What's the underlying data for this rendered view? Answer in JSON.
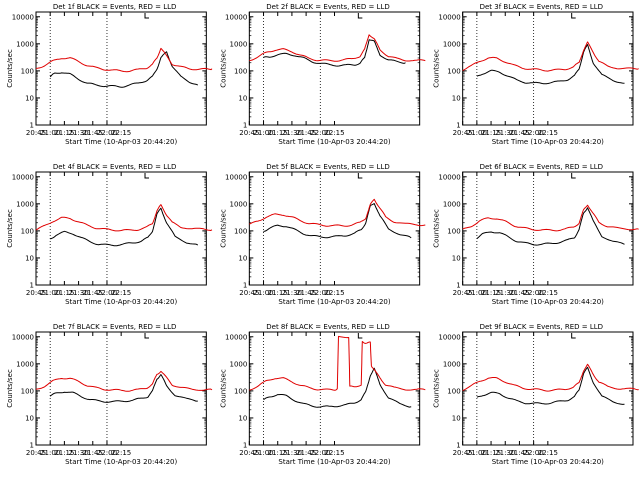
{
  "layout": {
    "rows": 3,
    "cols": 3
  },
  "colors": {
    "events": "#000000",
    "lld": "#e00000",
    "axis": "#000000",
    "background": "#ffffff"
  },
  "ylabel": "Counts/sec",
  "xlabel": "Start Time (10-Apr-03 20:44:20)",
  "xticks": [
    "20:45",
    "21:00",
    "21:15",
    "21:30",
    "21:45",
    "22:00",
    "22:15"
  ],
  "yticks": [
    "1",
    "10",
    "100",
    "1000",
    "10000"
  ],
  "chart_data": [
    {
      "type": "line",
      "title": "Det 1f BLACK = Events, RED = LLD",
      "xlabel": "Start Time (10-Apr-03 20:44:20)",
      "ylabel": "Counts/sec",
      "ylim": [
        1,
        15000
      ],
      "yscale": "log",
      "dotted_lines": [
        21.0,
        22.0
      ],
      "x": [
        21.0,
        21.1,
        21.2,
        21.3,
        21.4,
        21.5,
        21.6,
        21.7,
        21.8,
        21.9,
        22.0,
        22.1,
        22.2,
        22.3,
        22.4,
        22.5,
        22.6,
        22.7,
        22.8,
        22.9,
        23.0,
        23.1,
        23.2,
        23.3,
        23.4,
        23.5,
        23.6
      ],
      "series": [
        {
          "name": "Events",
          "x": [
            21.0,
            21.08,
            21.2,
            21.35,
            21.5,
            21.65,
            21.8,
            21.95,
            22.1,
            22.25,
            22.4,
            22.55,
            22.7,
            22.8,
            22.88,
            22.95,
            23.05,
            23.15,
            23.3,
            23.45,
            23.6
          ],
          "values": [
            60,
            80,
            90,
            75,
            50,
            35,
            30,
            28,
            27,
            26,
            30,
            35,
            45,
            60,
            120,
            300,
            500,
            150,
            60,
            40,
            30
          ]
        },
        {
          "name": "LLD",
          "x": [
            20.75,
            20.9,
            21.05,
            21.2,
            21.35,
            21.5,
            21.65,
            21.8,
            21.95,
            22.1,
            22.25,
            22.4,
            22.55,
            22.7,
            22.8,
            22.88,
            22.95,
            23.05,
            23.15,
            23.3,
            23.45,
            23.6,
            23.75,
            23.85
          ],
          "values": [
            120,
            160,
            230,
            300,
            300,
            220,
            160,
            130,
            115,
            105,
            100,
            100,
            110,
            130,
            170,
            300,
            700,
            350,
            180,
            140,
            120,
            115,
            115,
            120
          ]
        }
      ]
    },
    {
      "type": "line",
      "title": "Det 2f BLACK = Events, RED = LLD",
      "xlabel": "Start Time (10-Apr-03 20:44:20)",
      "ylabel": "Counts/sec",
      "ylim": [
        1,
        15000
      ],
      "yscale": "log",
      "dotted_lines": [
        21.0,
        22.0
      ],
      "series": [
        {
          "name": "Events",
          "x": [
            21.0,
            21.1,
            21.25,
            21.4,
            21.55,
            21.7,
            21.85,
            22.0,
            22.15,
            22.3,
            22.45,
            22.6,
            22.7,
            22.78,
            22.86,
            22.95,
            23.05,
            23.2,
            23.35,
            23.5
          ],
          "values": [
            300,
            330,
            400,
            420,
            380,
            300,
            220,
            190,
            170,
            160,
            160,
            170,
            190,
            300,
            1500,
            1200,
            400,
            250,
            220,
            200
          ]
        },
        {
          "name": "LLD",
          "x": [
            20.75,
            20.9,
            21.05,
            21.2,
            21.35,
            21.5,
            21.65,
            21.8,
            21.95,
            22.1,
            22.25,
            22.4,
            22.55,
            22.7,
            22.78,
            22.86,
            22.95,
            23.05,
            23.2,
            23.35,
            23.5,
            23.7,
            23.85
          ],
          "values": [
            250,
            320,
            480,
            600,
            620,
            520,
            380,
            290,
            250,
            240,
            240,
            250,
            280,
            350,
            600,
            2300,
            1500,
            600,
            350,
            280,
            250,
            240,
            240
          ]
        }
      ]
    },
    {
      "type": "line",
      "title": "Det 3f BLACK = Events, RED = LLD",
      "xlabel": "Start Time (10-Apr-03 20:44:20)",
      "ylabel": "Counts/sec",
      "ylim": [
        1,
        15000
      ],
      "yscale": "log",
      "dotted_lines": [
        21.0,
        22.0
      ],
      "series": [
        {
          "name": "Events",
          "x": [
            21.0,
            21.1,
            21.25,
            21.4,
            21.55,
            21.7,
            21.85,
            22.0,
            22.15,
            22.3,
            22.45,
            22.6,
            22.72,
            22.8,
            22.88,
            22.95,
            23.05,
            23.2,
            23.4,
            23.6
          ],
          "values": [
            60,
            80,
            100,
            90,
            65,
            45,
            38,
            35,
            35,
            37,
            40,
            48,
            65,
            120,
            500,
            900,
            200,
            70,
            45,
            35
          ]
        },
        {
          "name": "LLD",
          "x": [
            20.75,
            20.9,
            21.05,
            21.2,
            21.35,
            21.5,
            21.65,
            21.8,
            21.95,
            22.1,
            22.25,
            22.4,
            22.55,
            22.7,
            22.8,
            22.88,
            22.95,
            23.05,
            23.15,
            23.3,
            23.5,
            23.7,
            23.85
          ],
          "values": [
            110,
            150,
            230,
            300,
            290,
            220,
            160,
            130,
            115,
            110,
            105,
            108,
            115,
            140,
            200,
            600,
            1100,
            500,
            220,
            150,
            125,
            120,
            120
          ]
        }
      ]
    },
    {
      "type": "line",
      "title": "Det 4f BLACK = Events, RED = LLD",
      "xlabel": "Start Time (10-Apr-03 20:44:20)",
      "ylabel": "Counts/sec",
      "ylim": [
        1,
        15000
      ],
      "yscale": "log",
      "dotted_lines": [
        21.0,
        22.0
      ],
      "series": [
        {
          "name": "Events",
          "x": [
            21.0,
            21.1,
            21.25,
            21.4,
            21.55,
            21.7,
            21.85,
            22.0,
            22.15,
            22.3,
            22.45,
            22.6,
            22.72,
            22.8,
            22.88,
            22.95,
            23.05,
            23.2,
            23.4,
            23.6
          ],
          "values": [
            50,
            70,
            90,
            80,
            55,
            40,
            32,
            30,
            30,
            32,
            36,
            42,
            55,
            100,
            400,
            700,
            200,
            60,
            38,
            30
          ]
        },
        {
          "name": "LLD",
          "x": [
            20.75,
            20.9,
            21.05,
            21.2,
            21.35,
            21.5,
            21.65,
            21.8,
            21.95,
            22.1,
            22.25,
            22.4,
            22.55,
            22.7,
            22.8,
            22.88,
            22.95,
            23.05,
            23.15,
            23.3,
            23.5,
            23.7,
            23.85
          ],
          "values": [
            110,
            150,
            230,
            300,
            290,
            220,
            160,
            130,
            115,
            108,
            105,
            105,
            112,
            135,
            190,
            550,
            900,
            400,
            200,
            140,
            120,
            115,
            110
          ]
        }
      ]
    },
    {
      "type": "line",
      "title": "Det 5f BLACK = Events, RED = LLD",
      "xlabel": "Start Time (10-Apr-03 20:44:20)",
      "ylabel": "Counts/sec",
      "ylim": [
        1,
        15000
      ],
      "yscale": "log",
      "dotted_lines": [
        21.0,
        22.0
      ],
      "series": [
        {
          "name": "Events",
          "x": [
            21.0,
            21.1,
            21.25,
            21.4,
            21.55,
            21.7,
            21.85,
            22.0,
            22.15,
            22.3,
            22.45,
            22.6,
            22.72,
            22.8,
            22.88,
            22.95,
            23.05,
            23.2,
            23.4,
            23.6
          ],
          "values": [
            100,
            120,
            160,
            150,
            110,
            80,
            65,
            60,
            60,
            62,
            68,
            80,
            110,
            200,
            800,
            1100,
            350,
            120,
            75,
            55
          ]
        },
        {
          "name": "LLD",
          "x": [
            20.75,
            20.9,
            21.05,
            21.2,
            21.35,
            21.5,
            21.65,
            21.8,
            21.95,
            22.1,
            22.25,
            22.4,
            22.55,
            22.7,
            22.8,
            22.88,
            22.95,
            23.05,
            23.15,
            23.3,
            23.5,
            23.7,
            23.85
          ],
          "values": [
            170,
            230,
            330,
            400,
            400,
            320,
            240,
            190,
            170,
            160,
            155,
            155,
            165,
            200,
            300,
            900,
            1500,
            700,
            320,
            220,
            180,
            170,
            165
          ]
        }
      ]
    },
    {
      "type": "line",
      "title": "Det 6f BLACK = Events, RED = LLD",
      "xlabel": "Start Time (10-Apr-03 20:44:20)",
      "ylabel": "Counts/sec",
      "ylim": [
        1,
        15000
      ],
      "yscale": "log",
      "dotted_lines": [
        21.0,
        22.0
      ],
      "series": [
        {
          "name": "Events",
          "x": [
            21.0,
            21.1,
            21.25,
            21.4,
            21.55,
            21.7,
            21.85,
            22.0,
            22.15,
            22.3,
            22.45,
            22.6,
            22.72,
            22.8,
            22.88,
            22.95,
            23.05,
            23.2,
            23.4,
            23.6
          ],
          "values": [
            55,
            75,
            95,
            85,
            60,
            42,
            35,
            32,
            32,
            34,
            38,
            45,
            58,
            110,
            450,
            750,
            220,
            65,
            40,
            32
          ]
        },
        {
          "name": "LLD",
          "x": [
            20.75,
            20.9,
            21.05,
            21.2,
            21.35,
            21.5,
            21.65,
            21.8,
            21.95,
            22.1,
            22.25,
            22.4,
            22.55,
            22.7,
            22.8,
            22.88,
            22.95,
            23.05,
            23.15,
            23.3,
            23.5,
            23.7,
            23.85
          ],
          "values": [
            110,
            150,
            230,
            300,
            290,
            220,
            160,
            130,
            115,
            110,
            105,
            107,
            115,
            138,
            195,
            580,
            950,
            420,
            210,
            145,
            122,
            118,
            115
          ]
        }
      ]
    },
    {
      "type": "line",
      "title": "Det 7f BLACK = Events, RED = LLD",
      "xlabel": "Start Time (10-Apr-03 20:44:20)",
      "ylabel": "Counts/sec",
      "ylim": [
        1,
        15000
      ],
      "yscale": "log",
      "dotted_lines": [
        21.0,
        22.0
      ],
      "series": [
        {
          "name": "Events",
          "x": [
            21.0,
            21.1,
            21.25,
            21.4,
            21.55,
            21.7,
            21.85,
            22.0,
            22.15,
            22.3,
            22.45,
            22.6,
            22.72,
            22.8,
            22.88,
            22.95,
            23.05,
            23.2,
            23.4,
            23.6
          ],
          "values": [
            65,
            80,
            95,
            85,
            62,
            48,
            42,
            40,
            40,
            42,
            45,
            52,
            62,
            95,
            280,
            400,
            150,
            70,
            50,
            42
          ]
        },
        {
          "name": "LLD",
          "x": [
            20.75,
            20.9,
            21.05,
            21.2,
            21.35,
            21.5,
            21.65,
            21.8,
            21.95,
            22.1,
            22.25,
            22.4,
            22.55,
            22.7,
            22.8,
            22.88,
            22.95,
            23.05,
            23.15,
            23.3,
            23.5,
            23.7,
            23.85
          ],
          "values": [
            110,
            150,
            230,
            300,
            290,
            220,
            160,
            130,
            115,
            108,
            104,
            104,
            110,
            130,
            175,
            400,
            550,
            300,
            170,
            130,
            115,
            110,
            110
          ]
        }
      ]
    },
    {
      "type": "line",
      "title": "Det 8f BLACK = Events, RED = LLD",
      "xlabel": "Start Time (10-Apr-03 20:44:20)",
      "ylabel": "Counts/sec",
      "ylim": [
        1,
        15000
      ],
      "yscale": "log",
      "dotted_lines": [
        21.0,
        22.0
      ],
      "series": [
        {
          "name": "Events",
          "x": [
            21.0,
            21.1,
            21.25,
            21.4,
            21.55,
            21.7,
            21.85,
            22.0,
            22.15,
            22.3,
            22.45,
            22.6,
            22.72,
            22.8,
            22.88,
            22.95,
            23.05,
            23.2,
            23.4,
            23.6
          ],
          "values": [
            45,
            60,
            75,
            65,
            45,
            33,
            28,
            26,
            26,
            28,
            30,
            36,
            48,
            90,
            380,
            650,
            180,
            55,
            33,
            26
          ]
        },
        {
          "name": "LLD",
          "x": [
            20.75,
            20.9,
            21.05,
            21.2,
            21.35,
            21.5,
            21.65,
            21.8,
            21.95,
            22.1,
            22.25,
            22.3,
            22.32,
            22.5,
            22.52,
            22.6,
            22.72,
            22.74,
            22.8,
            22.88,
            22.9,
            22.92,
            23.05,
            23.15,
            23.3,
            23.5,
            23.7,
            23.85
          ],
          "values": [
            110,
            150,
            230,
            300,
            290,
            220,
            160,
            130,
            115,
            110,
            110,
            120,
            10000,
            10000,
            140,
            150,
            160,
            6500,
            6000,
            6000,
            900,
            700,
            300,
            170,
            130,
            115,
            112,
            110
          ]
        }
      ]
    },
    {
      "type": "line",
      "title": "Det 9f BLACK = Events, RED = LLD",
      "xlabel": "Start Time (10-Apr-03 20:44:20)",
      "ylabel": "Counts/sec",
      "ylim": [
        1,
        15000
      ],
      "yscale": "log",
      "dotted_lines": [
        21.0,
        22.0
      ],
      "series": [
        {
          "name": "Events",
          "x": [
            21.0,
            21.1,
            21.25,
            21.4,
            21.55,
            21.7,
            21.85,
            22.0,
            22.15,
            22.3,
            22.45,
            22.6,
            22.72,
            22.8,
            22.88,
            22.95,
            23.05,
            23.2,
            23.4,
            23.6
          ],
          "values": [
            55,
            70,
            85,
            78,
            56,
            42,
            36,
            34,
            34,
            36,
            40,
            46,
            60,
            110,
            450,
            700,
            210,
            62,
            40,
            32
          ]
        },
        {
          "name": "LLD",
          "x": [
            20.75,
            20.9,
            21.05,
            21.2,
            21.35,
            21.5,
            21.65,
            21.8,
            21.95,
            22.1,
            22.25,
            22.4,
            22.55,
            22.7,
            22.8,
            22.88,
            22.95,
            23.05,
            23.15,
            23.3,
            23.5,
            23.7,
            23.85
          ],
          "values": [
            110,
            150,
            230,
            300,
            290,
            220,
            160,
            130,
            115,
            110,
            105,
            107,
            115,
            138,
            195,
            580,
            900,
            420,
            210,
            145,
            122,
            118,
            112
          ]
        }
      ]
    }
  ]
}
